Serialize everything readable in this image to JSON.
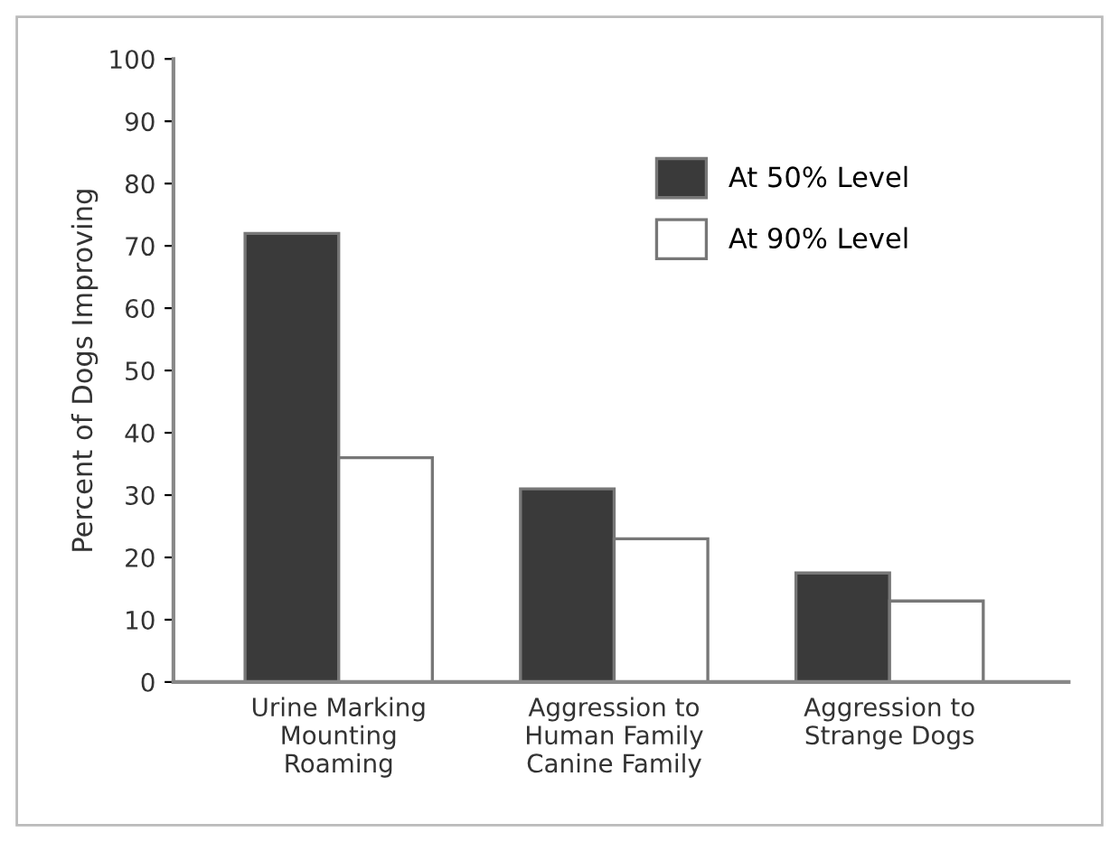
{
  "chart_data": {
    "type": "bar",
    "ylabel": "Percent of Dogs Improving",
    "categories": [
      "Urine Marking\nMounting\nRoaming",
      "Aggression to\nHuman Family\nCanine Family",
      "Aggression to\nStrange Dogs"
    ],
    "series": [
      {
        "name": "At 50% Level",
        "color": "#3a3a3a",
        "values": [
          72,
          31,
          17.5
        ]
      },
      {
        "name": "At 90% Level",
        "color": "#ffffff",
        "values": [
          36,
          23,
          13
        ]
      }
    ],
    "ylim": [
      0,
      100
    ],
    "yticks": [
      0,
      10,
      20,
      30,
      40,
      50,
      60,
      70,
      80,
      90,
      100
    ],
    "grid": false,
    "legend": "top right"
  }
}
